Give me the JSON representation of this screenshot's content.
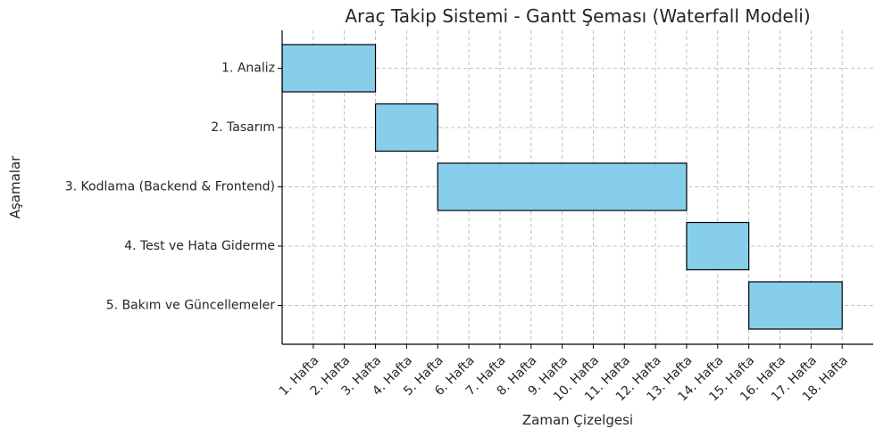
{
  "chart_data": {
    "type": "bar",
    "orientation": "horizontal",
    "title": "Araç Takip Sistemi - Gantt Şeması (Waterfall Modeli)",
    "xlabel": "Zaman Çizelgesi",
    "ylabel": "Aşamalar",
    "x_ticks": [
      "1. Hafta",
      "2. Hafta",
      "3. Hafta",
      "4. Hafta",
      "5. Hafta",
      "6. Hafta",
      "7. Hafta",
      "8. Hafta",
      "9. Hafta",
      "10. Hafta",
      "11. Hafta",
      "12. Hafta",
      "13. Hafta",
      "14. Hafta",
      "15. Hafta",
      "16. Hafta",
      "17. Hafta",
      "18. Hafta"
    ],
    "xlim": [
      0,
      19
    ],
    "grid": true,
    "bar_color": "#87ceeb",
    "tasks": [
      {
        "name": "1. Analiz",
        "start": 0,
        "duration": 3
      },
      {
        "name": "2. Tasarım",
        "start": 3,
        "duration": 2
      },
      {
        "name": "3. Kodlama (Backend & Frontend)",
        "start": 5,
        "duration": 8
      },
      {
        "name": "4. Test ve Hata Giderme",
        "start": 13,
        "duration": 2
      },
      {
        "name": "5. Bakım ve Güncellemeler",
        "start": 15,
        "duration": 3
      }
    ]
  }
}
